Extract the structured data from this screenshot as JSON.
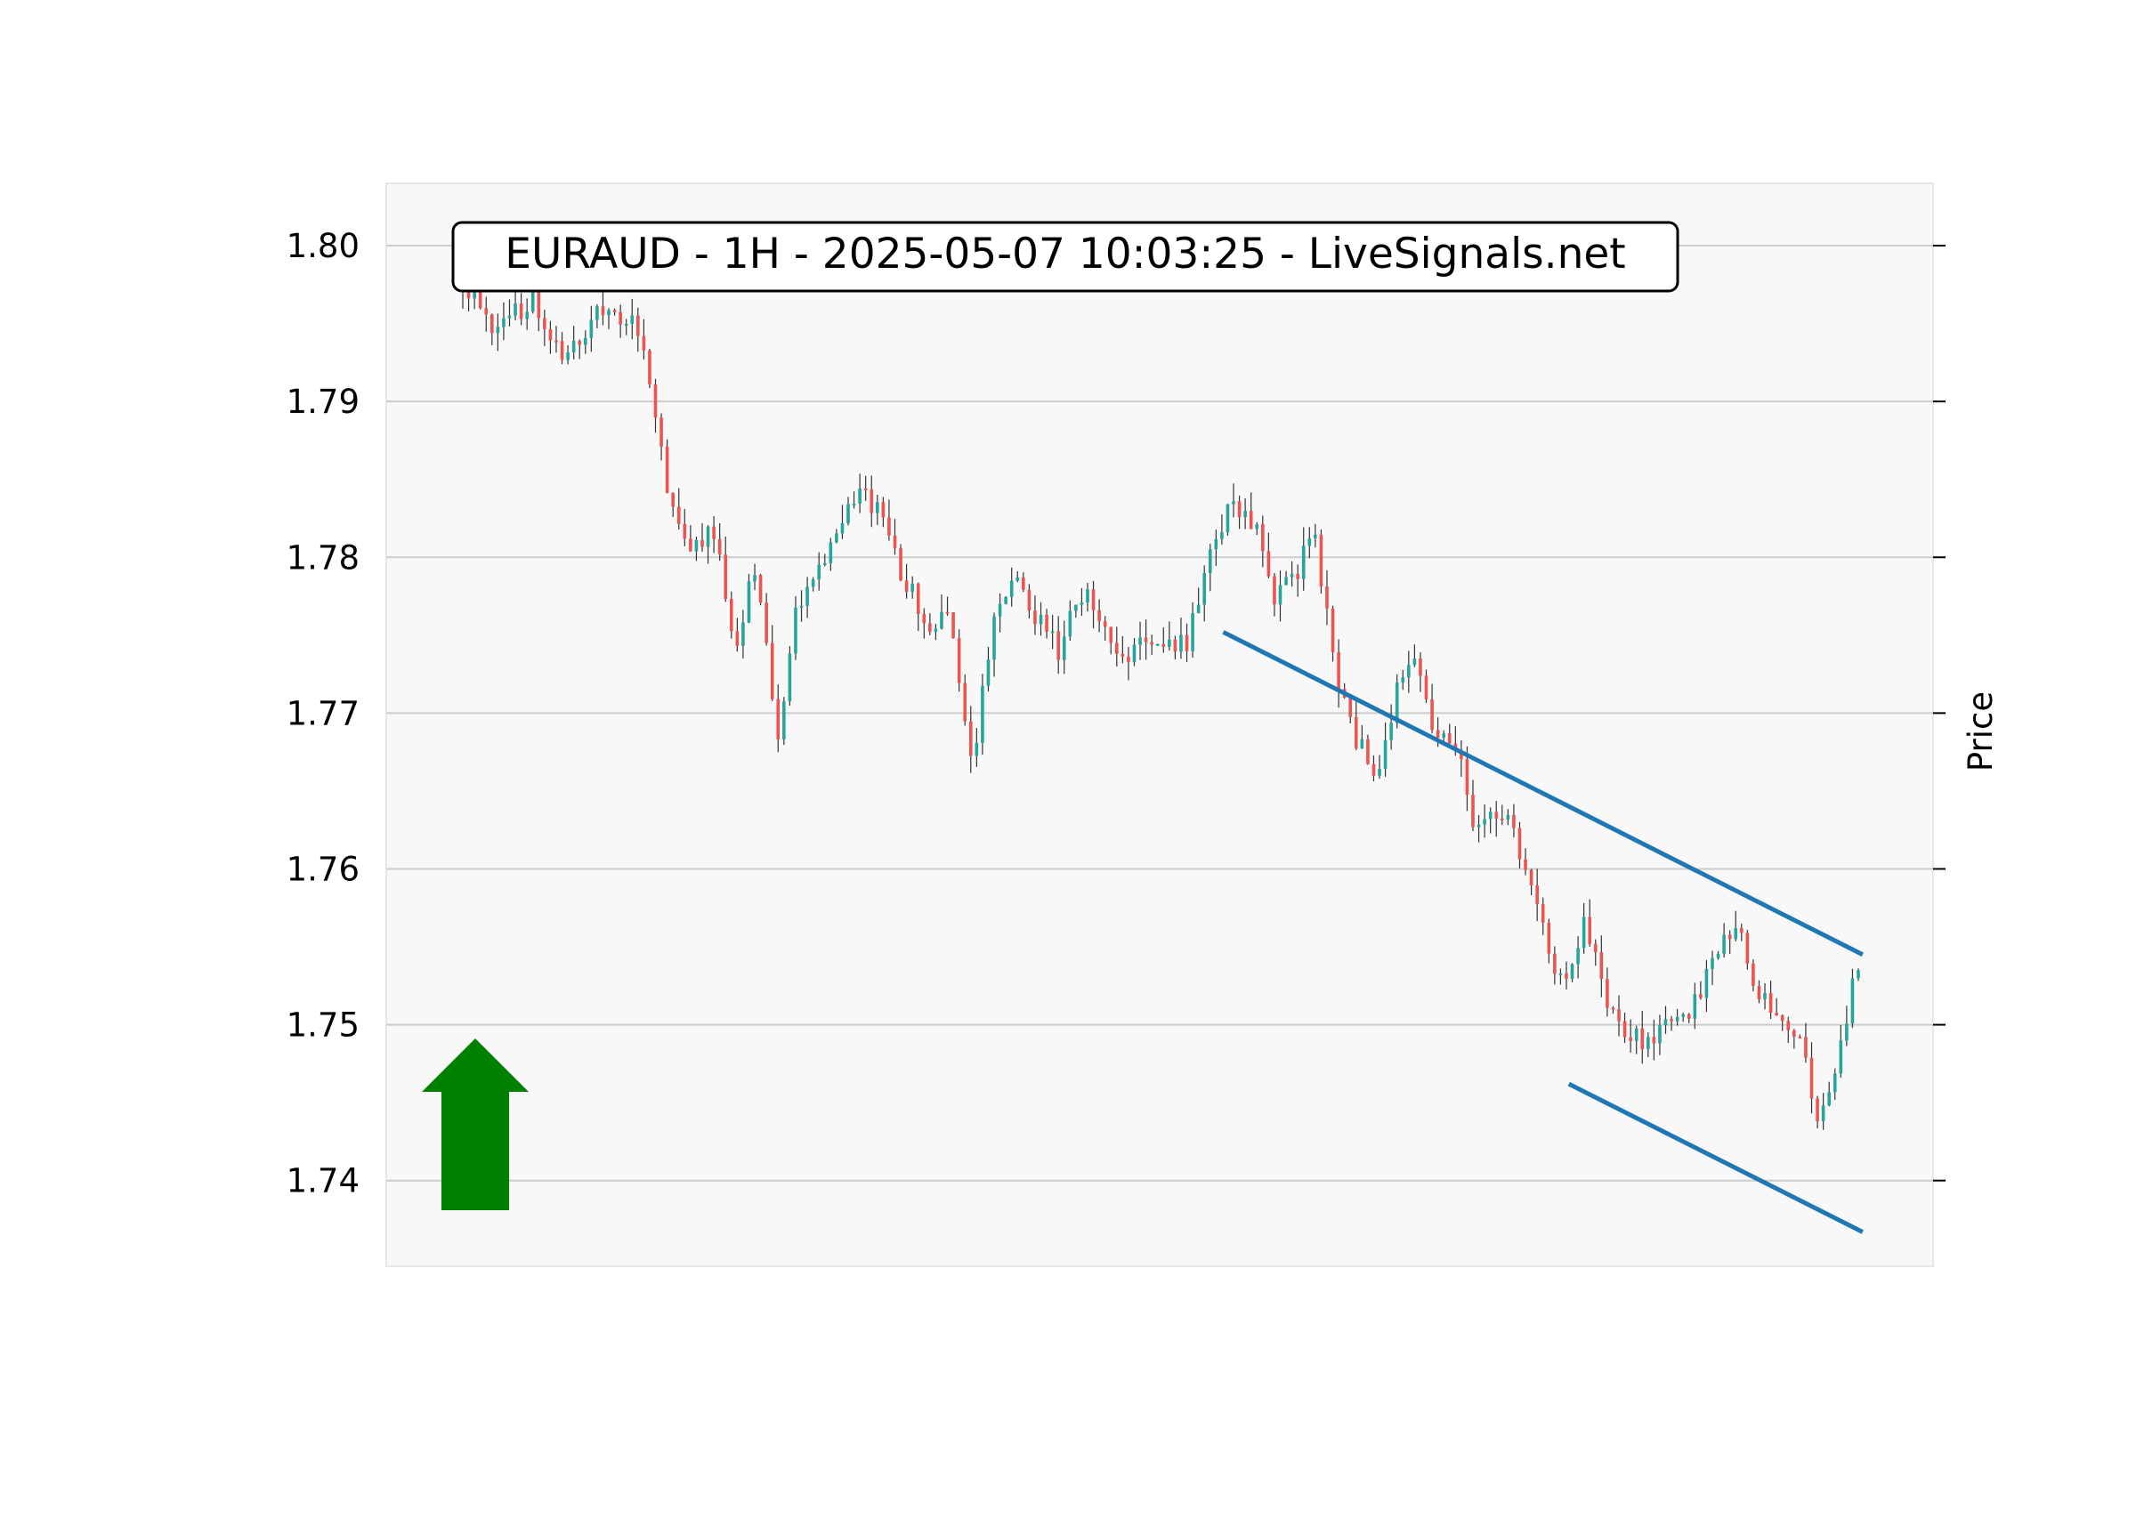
{
  "chart_data": {
    "type": "candlestick",
    "title": "EURAUD - 1H - 2025-05-07 10:03:25 - LiveSignals.net",
    "xlabel": "",
    "ylabel": "Price",
    "ylim": [
      1.7345,
      1.804
    ],
    "yticks": [
      "1.74",
      "1.75",
      "1.76",
      "1.77",
      "1.78",
      "1.79",
      "1.80"
    ],
    "ytick_values": [
      1.74,
      1.75,
      1.76,
      1.77,
      1.78,
      1.79,
      1.8
    ],
    "grid": true,
    "signal": "up",
    "colors": {
      "plot_background": "#f8f8f8",
      "grid": "#cccccc",
      "bullish": "#26a69a",
      "bearish": "#ef5350",
      "trendline": "#1f77b4",
      "signal_arrow": "#008000"
    },
    "candle_count": 240,
    "close_path": [
      [
        0,
        1.7975
      ],
      [
        8,
        1.7945
      ],
      [
        16,
        1.7965
      ],
      [
        24,
        1.793
      ],
      [
        32,
        1.796
      ],
      [
        40,
        1.7955
      ],
      [
        44,
        1.7905
      ],
      [
        48,
        1.783
      ],
      [
        53,
        1.7805
      ],
      [
        58,
        1.782
      ],
      [
        63,
        1.7745
      ],
      [
        68,
        1.7795
      ],
      [
        73,
        1.768
      ],
      [
        77,
        1.776
      ],
      [
        83,
        1.779
      ],
      [
        88,
        1.783
      ],
      [
        93,
        1.784
      ],
      [
        98,
        1.782
      ],
      [
        103,
        1.778
      ],
      [
        108,
        1.776
      ],
      [
        113,
        1.776
      ],
      [
        118,
        1.767
      ],
      [
        123,
        1.776
      ],
      [
        128,
        1.779
      ],
      [
        133,
        1.776
      ],
      [
        138,
        1.774
      ],
      [
        143,
        1.778
      ],
      [
        148,
        1.776
      ],
      [
        153,
        1.773
      ],
      [
        158,
        1.775
      ],
      [
        163,
        1.774
      ],
      [
        168,
        1.7745
      ],
      [
        173,
        1.781
      ],
      [
        178,
        1.7835
      ],
      [
        183,
        1.7825
      ],
      [
        188,
        1.777
      ],
      [
        193,
        1.779
      ],
      [
        197,
        1.782
      ],
      [
        201,
        1.774
      ],
      [
        206,
        1.769
      ],
      [
        211,
        1.766
      ],
      [
        216,
        1.771
      ],
      [
        220,
        1.774
      ],
      [
        225,
        1.769
      ],
      [
        230,
        1.768
      ],
      [
        235,
        1.762
      ],
      [
        240,
        1.764
      ],
      [
        245,
        1.761
      ],
      [
        250,
        1.756
      ],
      [
        255,
        1.752
      ],
      [
        260,
        1.757
      ],
      [
        265,
        1.7505
      ],
      [
        270,
        1.7495
      ],
      [
        275,
        1.749
      ],
      [
        280,
        1.75
      ],
      [
        285,
        1.7515
      ],
      [
        290,
        1.7545
      ],
      [
        295,
        1.756
      ],
      [
        300,
        1.752
      ],
      [
        305,
        1.75
      ],
      [
        310,
        1.7495
      ],
      [
        313,
        1.743
      ],
      [
        318,
        1.7475
      ],
      [
        323,
        1.754
      ]
    ],
    "trendlines": [
      {
        "role": "upper",
        "points": [
          [
            176,
            1.7752
          ],
          [
            324,
            1.7545
          ]
        ]
      },
      {
        "role": "lower",
        "points": [
          [
            256,
            1.7462
          ],
          [
            324,
            1.7367
          ]
        ]
      }
    ]
  }
}
